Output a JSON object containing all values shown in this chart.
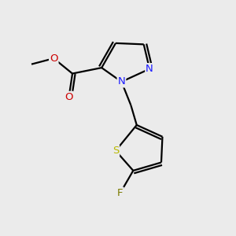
{
  "bg_color": "#ebebeb",
  "bond_color": "#000000",
  "atom_colors": {
    "N": "#1a1aff",
    "O": "#cc0000",
    "S": "#b8b800",
    "F": "#7a7a00"
  },
  "figsize": [
    3.0,
    3.0
  ],
  "dpi": 100
}
